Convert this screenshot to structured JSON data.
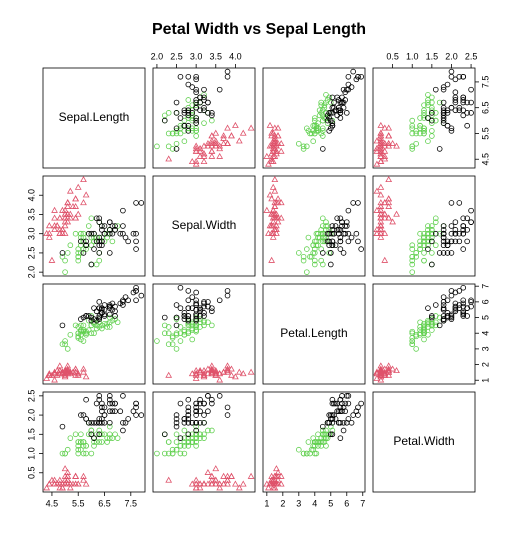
{
  "chart_data": {
    "type": "pairs",
    "title": "Petal Width vs Sepal Length",
    "variables": [
      "Sepal.Length",
      "Sepal.Width",
      "Petal.Length",
      "Petal.Width"
    ],
    "axes": [
      {
        "lim": [
          4.16,
          8.04
        ],
        "ticks": [
          4.5,
          5.5,
          6.5,
          7.5
        ]
      },
      {
        "lim": [
          1.9,
          4.5
        ],
        "ticks": [
          {
            "value": 2,
            "label": "2.0"
          },
          2.5,
          {
            "value": 3,
            "label": "3.0"
          },
          3.5,
          {
            "value": 4,
            "label": "4.0"
          }
        ]
      },
      {
        "lim": [
          0.76,
          7.14
        ],
        "ticks": [
          1,
          2,
          3,
          4,
          5,
          6,
          7
        ]
      },
      {
        "lim": [
          0,
          2.6
        ],
        "ticks": [
          0.5,
          {
            "value": 1,
            "label": "1.0"
          },
          1.5,
          {
            "value": 2,
            "label": "2.0"
          },
          2.5
        ]
      }
    ],
    "series": [
      {
        "color": "#DF536B",
        "marker": "triangle",
        "data": [
          [
            5.1,
            3.5,
            1.4,
            0.2
          ],
          [
            4.9,
            3.0,
            1.4,
            0.2
          ],
          [
            4.7,
            3.2,
            1.3,
            0.2
          ],
          [
            4.6,
            3.1,
            1.5,
            0.2
          ],
          [
            5.0,
            3.6,
            1.4,
            0.2
          ],
          [
            5.4,
            3.9,
            1.7,
            0.4
          ],
          [
            4.6,
            3.4,
            1.4,
            0.3
          ],
          [
            5.0,
            3.4,
            1.5,
            0.2
          ],
          [
            4.4,
            2.9,
            1.4,
            0.2
          ],
          [
            4.9,
            3.1,
            1.5,
            0.1
          ],
          [
            5.4,
            3.7,
            1.5,
            0.2
          ],
          [
            4.8,
            3.4,
            1.6,
            0.2
          ],
          [
            4.8,
            3.0,
            1.4,
            0.1
          ],
          [
            4.3,
            3.0,
            1.1,
            0.1
          ],
          [
            5.8,
            4.0,
            1.2,
            0.2
          ],
          [
            5.7,
            4.4,
            1.5,
            0.4
          ],
          [
            5.4,
            3.9,
            1.3,
            0.4
          ],
          [
            5.1,
            3.5,
            1.4,
            0.3
          ],
          [
            5.7,
            3.8,
            1.7,
            0.3
          ],
          [
            5.1,
            3.8,
            1.5,
            0.3
          ],
          [
            5.4,
            3.4,
            1.7,
            0.2
          ],
          [
            5.1,
            3.7,
            1.5,
            0.4
          ],
          [
            4.6,
            3.6,
            1.0,
            0.2
          ],
          [
            5.1,
            3.3,
            1.7,
            0.5
          ],
          [
            4.8,
            3.4,
            1.9,
            0.2
          ],
          [
            5.0,
            3.0,
            1.6,
            0.2
          ],
          [
            5.0,
            3.4,
            1.6,
            0.4
          ],
          [
            5.2,
            3.5,
            1.5,
            0.2
          ],
          [
            5.2,
            3.4,
            1.4,
            0.2
          ],
          [
            4.7,
            3.2,
            1.6,
            0.2
          ],
          [
            4.8,
            3.1,
            1.6,
            0.2
          ],
          [
            5.4,
            3.4,
            1.5,
            0.4
          ],
          [
            5.2,
            4.1,
            1.5,
            0.1
          ],
          [
            5.5,
            4.2,
            1.4,
            0.2
          ],
          [
            4.9,
            3.1,
            1.5,
            0.2
          ],
          [
            5.0,
            3.2,
            1.2,
            0.2
          ],
          [
            5.5,
            3.5,
            1.3,
            0.2
          ],
          [
            4.9,
            3.6,
            1.4,
            0.1
          ],
          [
            4.4,
            3.0,
            1.3,
            0.2
          ],
          [
            5.1,
            3.4,
            1.5,
            0.2
          ],
          [
            5.0,
            3.5,
            1.3,
            0.3
          ],
          [
            4.5,
            2.3,
            1.3,
            0.3
          ],
          [
            4.4,
            3.2,
            1.3,
            0.2
          ],
          [
            5.0,
            3.5,
            1.6,
            0.6
          ],
          [
            5.1,
            3.8,
            1.9,
            0.4
          ],
          [
            4.8,
            3.0,
            1.4,
            0.3
          ],
          [
            5.1,
            3.8,
            1.6,
            0.2
          ],
          [
            4.6,
            3.2,
            1.4,
            0.2
          ],
          [
            5.3,
            3.7,
            1.5,
            0.2
          ],
          [
            5.0,
            3.3,
            1.4,
            0.2
          ]
        ]
      },
      {
        "color": "#61D04F",
        "marker": "circle",
        "data": [
          [
            7.0,
            3.2,
            4.7,
            1.4
          ],
          [
            6.4,
            3.2,
            4.5,
            1.5
          ],
          [
            6.9,
            3.1,
            4.9,
            1.5
          ],
          [
            5.5,
            2.3,
            4.0,
            1.3
          ],
          [
            6.5,
            2.8,
            4.6,
            1.5
          ],
          [
            5.7,
            2.8,
            4.5,
            1.3
          ],
          [
            6.3,
            3.3,
            4.7,
            1.6
          ],
          [
            4.9,
            2.4,
            3.3,
            1.0
          ],
          [
            6.6,
            2.9,
            4.6,
            1.3
          ],
          [
            5.2,
            2.7,
            3.9,
            1.4
          ],
          [
            5.0,
            2.0,
            3.5,
            1.0
          ],
          [
            5.9,
            3.0,
            4.2,
            1.5
          ],
          [
            6.0,
            2.2,
            4.0,
            1.0
          ],
          [
            6.1,
            2.9,
            4.7,
            1.4
          ],
          [
            5.6,
            2.9,
            3.6,
            1.3
          ],
          [
            6.7,
            3.1,
            4.4,
            1.4
          ],
          [
            5.6,
            3.0,
            4.5,
            1.5
          ],
          [
            5.8,
            2.7,
            4.1,
            1.0
          ],
          [
            6.2,
            2.2,
            4.5,
            1.5
          ],
          [
            5.6,
            2.5,
            3.9,
            1.1
          ],
          [
            5.9,
            3.2,
            4.8,
            1.8
          ],
          [
            6.1,
            2.8,
            4.0,
            1.3
          ],
          [
            6.3,
            2.5,
            4.9,
            1.5
          ],
          [
            6.1,
            2.8,
            4.7,
            1.2
          ],
          [
            6.4,
            2.9,
            4.3,
            1.3
          ],
          [
            6.6,
            3.0,
            4.4,
            1.4
          ],
          [
            6.8,
            2.8,
            4.8,
            1.4
          ],
          [
            6.7,
            3.0,
            5.0,
            1.7
          ],
          [
            6.0,
            2.9,
            4.5,
            1.5
          ],
          [
            5.7,
            2.6,
            3.5,
            1.0
          ],
          [
            5.5,
            2.4,
            3.8,
            1.1
          ],
          [
            5.5,
            2.4,
            3.7,
            1.0
          ],
          [
            5.8,
            2.7,
            3.9,
            1.2
          ],
          [
            6.0,
            2.7,
            5.1,
            1.6
          ],
          [
            5.4,
            3.0,
            4.5,
            1.5
          ],
          [
            6.0,
            3.4,
            4.5,
            1.6
          ],
          [
            6.7,
            3.1,
            4.7,
            1.5
          ],
          [
            6.3,
            2.3,
            4.4,
            1.3
          ],
          [
            5.6,
            3.0,
            4.1,
            1.3
          ],
          [
            5.5,
            2.5,
            4.0,
            1.3
          ],
          [
            5.5,
            2.6,
            4.4,
            1.2
          ],
          [
            6.1,
            3.0,
            4.6,
            1.4
          ],
          [
            5.8,
            2.6,
            4.0,
            1.2
          ],
          [
            5.0,
            2.3,
            3.3,
            1.0
          ],
          [
            5.6,
            2.7,
            4.2,
            1.3
          ],
          [
            5.7,
            3.0,
            4.2,
            1.2
          ],
          [
            5.7,
            2.9,
            4.2,
            1.3
          ],
          [
            6.2,
            2.9,
            4.3,
            1.3
          ],
          [
            5.1,
            2.5,
            3.0,
            1.1
          ],
          [
            5.7,
            2.8,
            4.1,
            1.3
          ]
        ]
      },
      {
        "color": "#000000",
        "marker": "circle",
        "data": [
          [
            6.3,
            3.3,
            6.0,
            2.5
          ],
          [
            5.8,
            2.7,
            5.1,
            1.9
          ],
          [
            7.1,
            3.0,
            5.9,
            2.1
          ],
          [
            6.3,
            2.9,
            5.6,
            1.8
          ],
          [
            6.5,
            3.0,
            5.8,
            2.2
          ],
          [
            7.6,
            3.0,
            6.6,
            2.1
          ],
          [
            4.9,
            2.5,
            4.5,
            1.7
          ],
          [
            7.3,
            2.9,
            6.3,
            1.8
          ],
          [
            6.7,
            2.5,
            5.8,
            1.8
          ],
          [
            7.2,
            3.6,
            6.1,
            2.5
          ],
          [
            6.5,
            3.2,
            5.1,
            2.0
          ],
          [
            6.4,
            2.7,
            5.3,
            1.9
          ],
          [
            6.8,
            3.0,
            5.5,
            2.1
          ],
          [
            5.7,
            2.5,
            5.0,
            2.0
          ],
          [
            5.8,
            2.8,
            5.1,
            2.4
          ],
          [
            6.4,
            3.2,
            5.3,
            2.3
          ],
          [
            6.5,
            3.0,
            5.5,
            1.8
          ],
          [
            7.7,
            3.8,
            6.7,
            2.2
          ],
          [
            7.7,
            2.6,
            6.9,
            2.3
          ],
          [
            6.0,
            2.2,
            5.0,
            1.5
          ],
          [
            6.9,
            3.2,
            5.7,
            2.3
          ],
          [
            5.6,
            2.8,
            4.9,
            2.0
          ],
          [
            7.7,
            2.8,
            6.7,
            2.0
          ],
          [
            6.3,
            2.7,
            4.9,
            1.8
          ],
          [
            6.7,
            3.3,
            5.7,
            2.1
          ],
          [
            7.2,
            3.2,
            6.0,
            1.8
          ],
          [
            6.2,
            2.8,
            4.8,
            1.8
          ],
          [
            6.1,
            3.0,
            4.9,
            1.8
          ],
          [
            6.4,
            2.8,
            5.6,
            2.1
          ],
          [
            7.2,
            3.0,
            5.8,
            1.6
          ],
          [
            7.4,
            2.8,
            6.1,
            1.9
          ],
          [
            7.9,
            3.8,
            6.4,
            2.0
          ],
          [
            6.4,
            2.8,
            5.6,
            2.2
          ],
          [
            6.3,
            2.8,
            5.1,
            1.5
          ],
          [
            6.1,
            2.6,
            5.6,
            1.4
          ],
          [
            7.7,
            3.0,
            6.1,
            2.3
          ],
          [
            6.3,
            3.4,
            5.6,
            2.4
          ],
          [
            6.4,
            3.1,
            5.5,
            1.8
          ],
          [
            6.0,
            3.0,
            4.8,
            1.8
          ],
          [
            6.9,
            3.1,
            5.4,
            2.1
          ],
          [
            6.7,
            3.1,
            5.6,
            2.4
          ],
          [
            6.9,
            3.1,
            5.1,
            2.3
          ],
          [
            5.8,
            2.7,
            5.1,
            1.9
          ],
          [
            6.8,
            3.2,
            5.9,
            2.3
          ],
          [
            6.7,
            3.3,
            5.7,
            2.5
          ],
          [
            6.7,
            3.0,
            5.2,
            2.3
          ],
          [
            6.3,
            2.5,
            5.0,
            1.9
          ],
          [
            6.5,
            3.0,
            5.2,
            2.0
          ],
          [
            6.2,
            3.4,
            5.4,
            2.3
          ],
          [
            5.9,
            3.0,
            5.1,
            1.8
          ]
        ]
      }
    ]
  }
}
